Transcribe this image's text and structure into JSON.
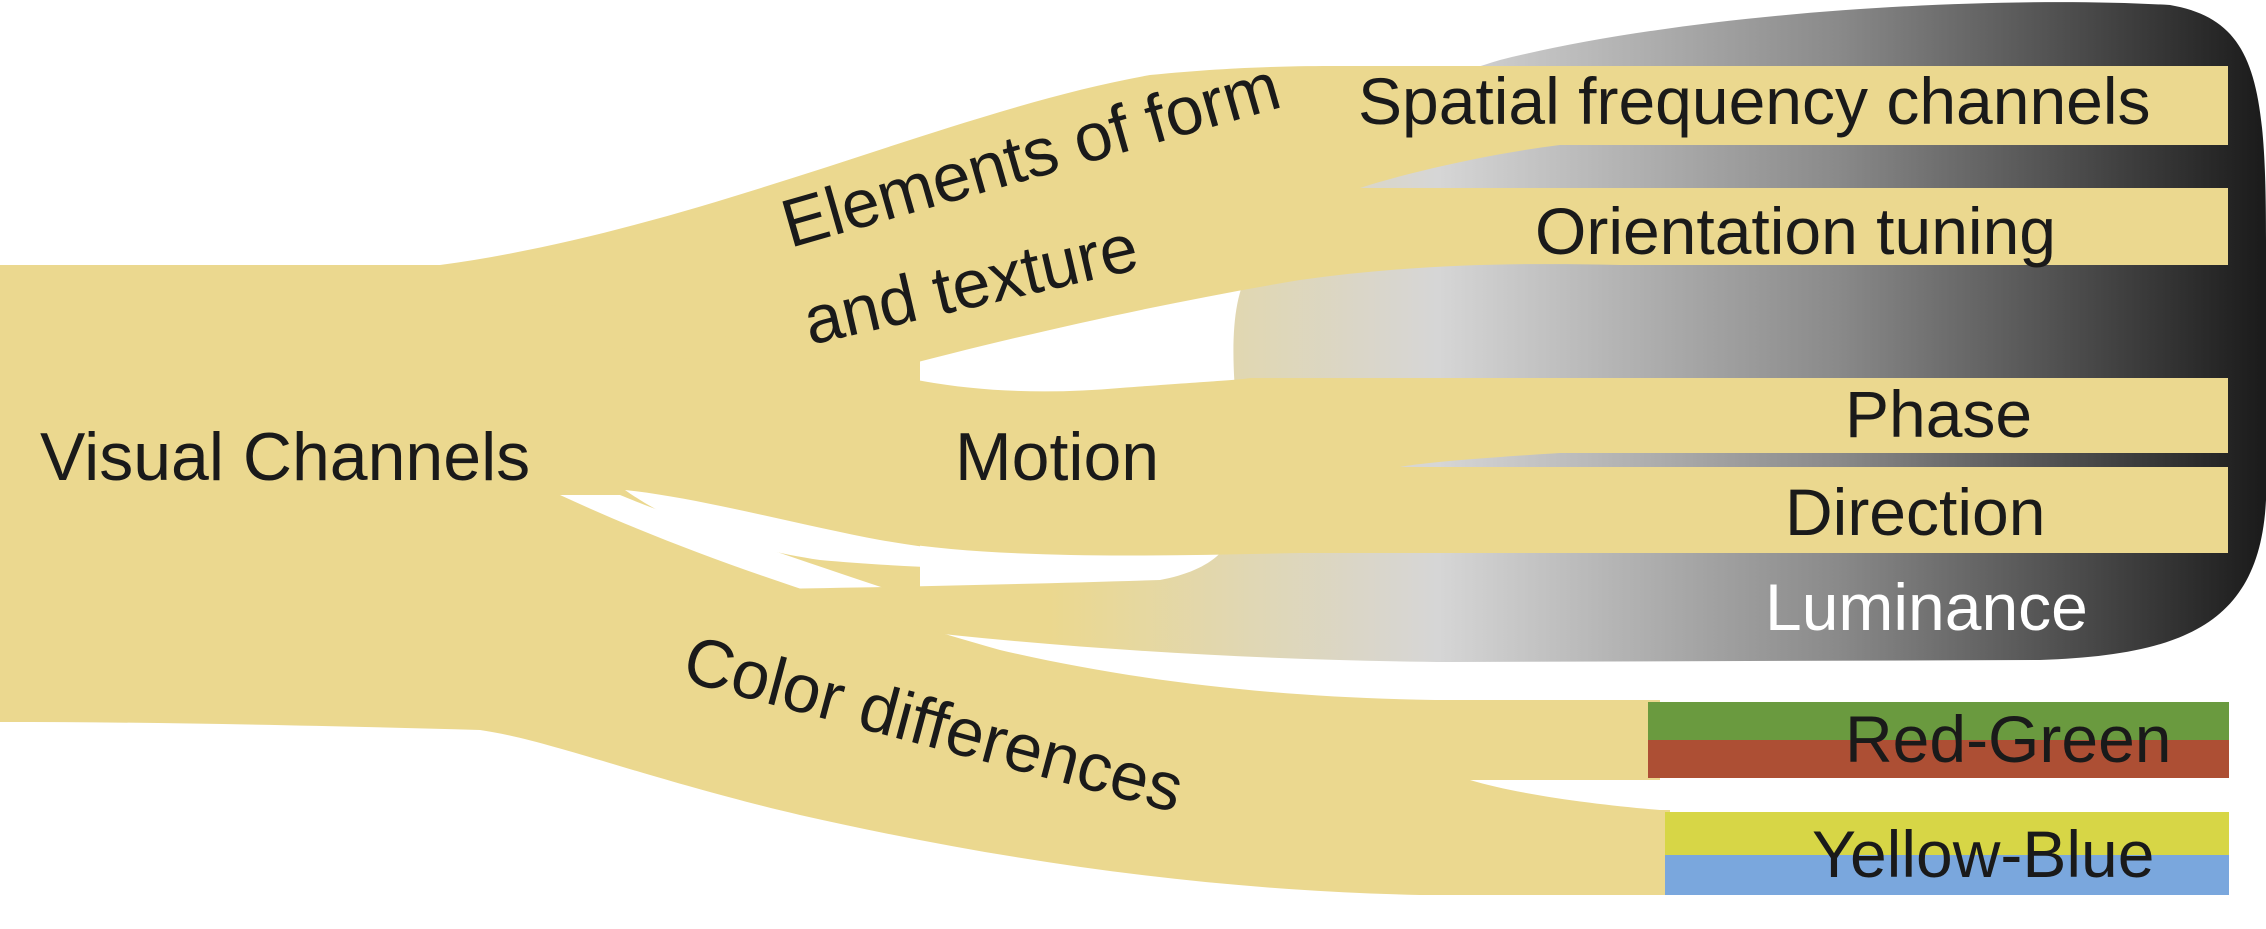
{
  "diagram": {
    "root": "Visual Channels",
    "branches": {
      "form": {
        "line1": "Elements of form",
        "line2": "and texture"
      },
      "motion": "Motion",
      "color": "Color differences"
    },
    "leaves": {
      "spatial": "Spatial frequency channels",
      "orientation": "Orientation tuning",
      "phase": "Phase",
      "direction": "Direction",
      "luminance": "Luminance",
      "red_green": "Red-Green",
      "yellow_blue": "Yellow-Blue"
    }
  },
  "colors": {
    "stream": "#ebd88f",
    "luminance_dark": "#1e1e1e",
    "luminance_mid": "#d8d8d8",
    "red": "#ad4f34",
    "green": "#6a9a3f",
    "yellow": "#d7d646",
    "blue": "#7aa7dd",
    "text": "#1a1a1a",
    "text_light": "#ffffff"
  }
}
